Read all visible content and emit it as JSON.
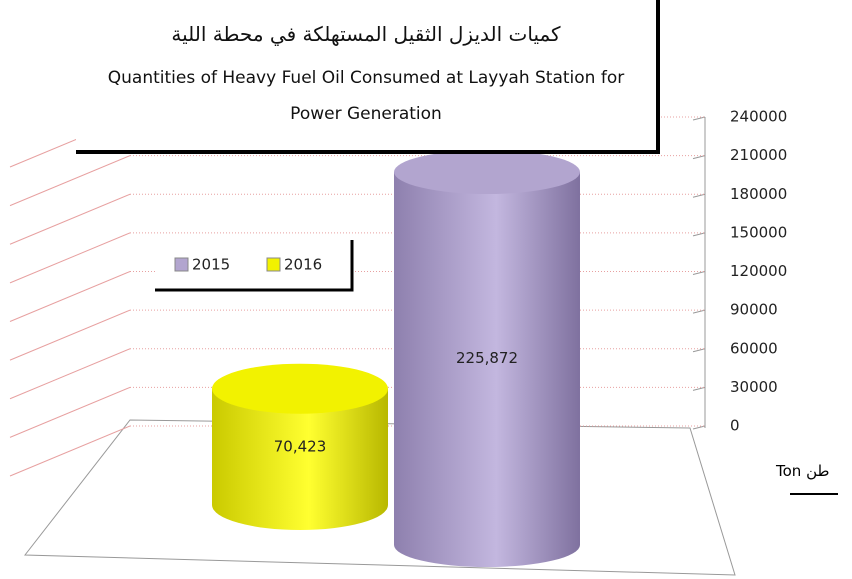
{
  "chart_data": {
    "type": "cylinder",
    "title": "كميات الديزل الثقيل المستهلكة في محطة اللية",
    "subtitle": "Quantities of Heavy Fuel Oil Consumed at Layyah Station for Power Generation",
    "y_axis_label": "Ton طن",
    "series": [
      {
        "name": "2015",
        "color": "#b2a5cf",
        "values": [
          225872
        ],
        "value_labels": [
          "225,872"
        ]
      },
      {
        "name": "2016",
        "color": "#f2f200",
        "values": [
          70423
        ],
        "value_labels": [
          "70,423"
        ]
      }
    ],
    "ylim": [
      0,
      240000
    ],
    "yticks": [
      0,
      30000,
      60000,
      90000,
      120000,
      150000,
      180000,
      210000,
      240000
    ],
    "grid": true
  }
}
